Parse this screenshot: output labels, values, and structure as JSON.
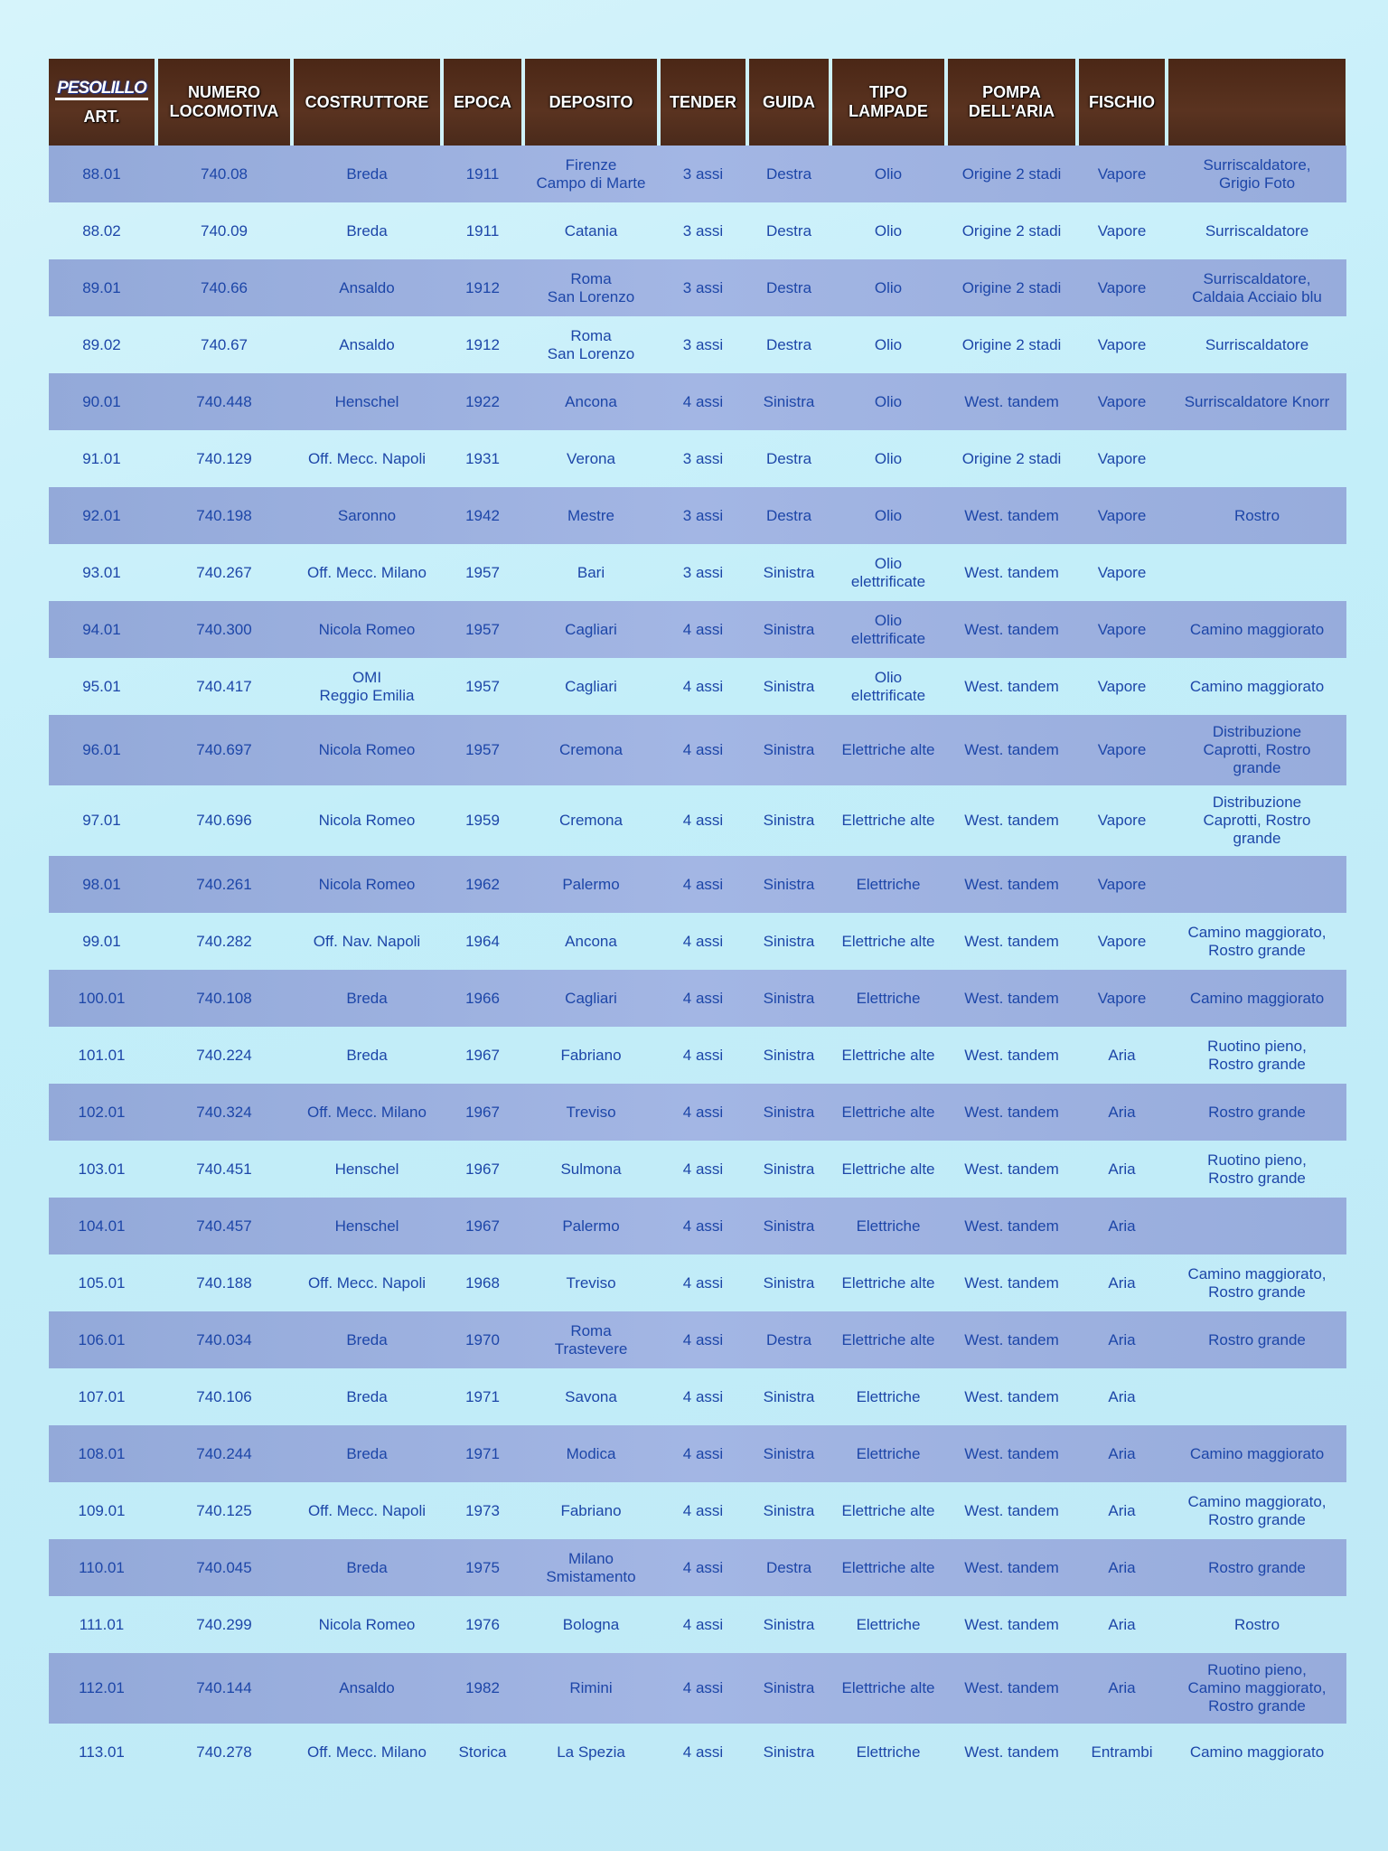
{
  "header": {
    "logo": "PESOLILLO",
    "columns": [
      "ART.",
      "NUMERO LOCOMOTIVA",
      "COSTRUTTORE",
      "EPOCA",
      "DEPOSITO",
      "TENDER",
      "GUIDA",
      "TIPO LAMPADE",
      "POMPA DELL'ARIA",
      "FISCHIO",
      ""
    ]
  },
  "colors": {
    "header_bg": "#4b2716",
    "text": "#1d46a8",
    "band_dark": "#9fb2e0",
    "band_light": "#c3eef9"
  },
  "rows": [
    [
      "88.01",
      "740.08",
      "Breda",
      "1911",
      "Firenze\nCampo di Marte",
      "3 assi",
      "Destra",
      "Olio",
      "Origine 2 stadi",
      "Vapore",
      "Surriscaldatore,\nGrigio Foto"
    ],
    [
      "88.02",
      "740.09",
      "Breda",
      "1911",
      "Catania",
      "3 assi",
      "Destra",
      "Olio",
      "Origine 2 stadi",
      "Vapore",
      "Surriscaldatore"
    ],
    [
      "89.01",
      "740.66",
      "Ansaldo",
      "1912",
      "Roma\nSan Lorenzo",
      "3 assi",
      "Destra",
      "Olio",
      "Origine 2 stadi",
      "Vapore",
      "Surriscaldatore,\nCaldaia Acciaio blu"
    ],
    [
      "89.02",
      "740.67",
      "Ansaldo",
      "1912",
      "Roma\nSan Lorenzo",
      "3 assi",
      "Destra",
      "Olio",
      "Origine 2 stadi",
      "Vapore",
      "Surriscaldatore"
    ],
    [
      "90.01",
      "740.448",
      "Henschel",
      "1922",
      "Ancona",
      "4 assi",
      "Sinistra",
      "Olio",
      "West. tandem",
      "Vapore",
      "Surriscaldatore Knorr"
    ],
    [
      "91.01",
      "740.129",
      "Off. Mecc. Napoli",
      "1931",
      "Verona",
      "3 assi",
      "Destra",
      "Olio",
      "Origine 2 stadi",
      "Vapore",
      ""
    ],
    [
      "92.01",
      "740.198",
      "Saronno",
      "1942",
      "Mestre",
      "3 assi",
      "Destra",
      "Olio",
      "West. tandem",
      "Vapore",
      "Rostro"
    ],
    [
      "93.01",
      "740.267",
      "Off. Mecc. Milano",
      "1957",
      "Bari",
      "3 assi",
      "Sinistra",
      "Olio\nelettrificate",
      "West. tandem",
      "Vapore",
      ""
    ],
    [
      "94.01",
      "740.300",
      "Nicola Romeo",
      "1957",
      "Cagliari",
      "4 assi",
      "Sinistra",
      "Olio\nelettrificate",
      "West. tandem",
      "Vapore",
      "Camino maggiorato"
    ],
    [
      "95.01",
      "740.417",
      "OMI\nReggio Emilia",
      "1957",
      "Cagliari",
      "4 assi",
      "Sinistra",
      "Olio\nelettrificate",
      "West. tandem",
      "Vapore",
      "Camino maggiorato"
    ],
    [
      "96.01",
      "740.697",
      "Nicola Romeo",
      "1957",
      "Cremona",
      "4 assi",
      "Sinistra",
      "Elettriche alte",
      "West. tandem",
      "Vapore",
      "Distribuzione\nCaprotti, Rostro\ngrande"
    ],
    [
      "97.01",
      "740.696",
      "Nicola Romeo",
      "1959",
      "Cremona",
      "4 assi",
      "Sinistra",
      "Elettriche alte",
      "West. tandem",
      "Vapore",
      "Distribuzione\nCaprotti, Rostro\ngrande"
    ],
    [
      "98.01",
      "740.261",
      "Nicola Romeo",
      "1962",
      "Palermo",
      "4 assi",
      "Sinistra",
      "Elettriche",
      "West. tandem",
      "Vapore",
      ""
    ],
    [
      "99.01",
      "740.282",
      "Off. Nav. Napoli",
      "1964",
      "Ancona",
      "4 assi",
      "Sinistra",
      "Elettriche alte",
      "West. tandem",
      "Vapore",
      "Camino maggiorato,\nRostro grande"
    ],
    [
      "100.01",
      "740.108",
      "Breda",
      "1966",
      "Cagliari",
      "4 assi",
      "Sinistra",
      "Elettriche",
      "West. tandem",
      "Vapore",
      "Camino maggiorato"
    ],
    [
      "101.01",
      "740.224",
      "Breda",
      "1967",
      "Fabriano",
      "4 assi",
      "Sinistra",
      "Elettriche alte",
      "West. tandem",
      "Aria",
      "Ruotino pieno,\nRostro grande"
    ],
    [
      "102.01",
      "740.324",
      "Off. Mecc. Milano",
      "1967",
      "Treviso",
      "4 assi",
      "Sinistra",
      "Elettriche alte",
      "West. tandem",
      "Aria",
      "Rostro grande"
    ],
    [
      "103.01",
      "740.451",
      "Henschel",
      "1967",
      "Sulmona",
      "4 assi",
      "Sinistra",
      "Elettriche alte",
      "West. tandem",
      "Aria",
      "Ruotino pieno,\nRostro grande"
    ],
    [
      "104.01",
      "740.457",
      "Henschel",
      "1967",
      "Palermo",
      "4 assi",
      "Sinistra",
      "Elettriche",
      "West. tandem",
      "Aria",
      ""
    ],
    [
      "105.01",
      "740.188",
      "Off. Mecc. Napoli",
      "1968",
      "Treviso",
      "4 assi",
      "Sinistra",
      "Elettriche alte",
      "West. tandem",
      "Aria",
      "Camino maggiorato,\nRostro grande"
    ],
    [
      "106.01",
      "740.034",
      "Breda",
      "1970",
      "Roma\nTrastevere",
      "4 assi",
      "Destra",
      "Elettriche alte",
      "West. tandem",
      "Aria",
      "Rostro grande"
    ],
    [
      "107.01",
      "740.106",
      "Breda",
      "1971",
      "Savona",
      "4 assi",
      "Sinistra",
      "Elettriche",
      "West. tandem",
      "Aria",
      ""
    ],
    [
      "108.01",
      "740.244",
      "Breda",
      "1971",
      "Modica",
      "4 assi",
      "Sinistra",
      "Elettriche",
      "West. tandem",
      "Aria",
      "Camino maggiorato"
    ],
    [
      "109.01",
      "740.125",
      "Off. Mecc. Napoli",
      "1973",
      "Fabriano",
      "4 assi",
      "Sinistra",
      "Elettriche alte",
      "West. tandem",
      "Aria",
      "Camino maggiorato,\nRostro grande"
    ],
    [
      "110.01",
      "740.045",
      "Breda",
      "1975",
      "Milano\nSmistamento",
      "4 assi",
      "Destra",
      "Elettriche alte",
      "West. tandem",
      "Aria",
      "Rostro grande"
    ],
    [
      "111.01",
      "740.299",
      "Nicola Romeo",
      "1976",
      "Bologna",
      "4 assi",
      "Sinistra",
      "Elettriche",
      "West. tandem",
      "Aria",
      "Rostro"
    ],
    [
      "112.01",
      "740.144",
      "Ansaldo",
      "1982",
      "Rimini",
      "4 assi",
      "Sinistra",
      "Elettriche alte",
      "West. tandem",
      "Aria",
      "Ruotino pieno,\nCamino maggiorato,\nRostro grande"
    ],
    [
      "113.01",
      "740.278",
      "Off. Mecc. Milano",
      "Storica",
      "La Spezia",
      "4 assi",
      "Sinistra",
      "Elettriche",
      "West. tandem",
      "Entrambi",
      "Camino maggiorato"
    ]
  ]
}
